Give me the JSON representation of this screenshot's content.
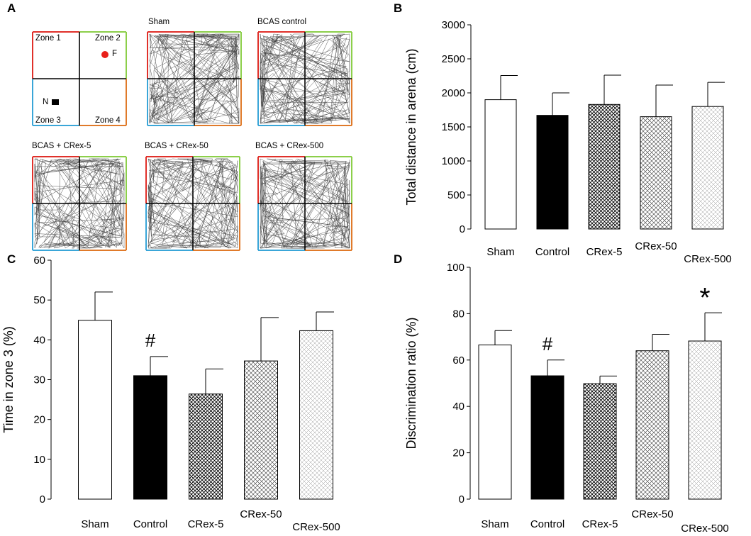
{
  "panels": {
    "a": "A",
    "b": "B",
    "c": "C",
    "d": "D"
  },
  "schematic": {
    "zone1": "Zone 1",
    "zone2": "Zone 2",
    "zone3": "Zone 3",
    "zone4": "Zone 4",
    "novel_marker": "N",
    "familiar_marker": "F"
  },
  "arenas": [
    {
      "title": "Sham"
    },
    {
      "title": "BCAS control"
    },
    {
      "title": "BCAS + CRex-5"
    },
    {
      "title": "BCAS + CRex-50"
    },
    {
      "title": "BCAS + CRex-500"
    }
  ],
  "colors": {
    "zone1_border": "#e0302a",
    "zone2_border": "#8ccf4a",
    "zone3_border": "#3aa6d8",
    "zone4_border": "#e07a2a",
    "familiar_dot": "#e8201a",
    "bar_outline": "#000000",
    "control_fill": "#000000"
  },
  "chart_data": [
    {
      "id": "B",
      "type": "bar",
      "title": "",
      "xlabel": "",
      "ylabel": "Total distance in arena (cm)",
      "ylim": [
        0,
        3000
      ],
      "yticks": [
        0,
        500,
        1000,
        1500,
        2000,
        2500,
        3000
      ],
      "categories": [
        "Sham",
        "Control",
        "CRex-5",
        "CRex-50",
        "CRex-500"
      ],
      "values": [
        1900,
        1670,
        1830,
        1650,
        1800
      ],
      "errors": [
        355,
        330,
        430,
        465,
        355
      ],
      "fills": [
        "white",
        "black",
        "crosshatch-dense",
        "crosshatch-medium",
        "crosshatch-light"
      ],
      "annotations": []
    },
    {
      "id": "C",
      "type": "bar",
      "title": "",
      "xlabel": "",
      "ylabel": "Time in zone 3 (%)",
      "ylim": [
        0,
        60
      ],
      "yticks": [
        0,
        10,
        20,
        30,
        40,
        50,
        60
      ],
      "categories": [
        "Sham",
        "Control",
        "CRex-5",
        "CRex-50",
        "CRex-500"
      ],
      "values": [
        44.9,
        31.0,
        26.4,
        34.7,
        42.3
      ],
      "errors": [
        7.1,
        4.8,
        6.3,
        10.9,
        4.7
      ],
      "fills": [
        "white",
        "black",
        "crosshatch-dense",
        "crosshatch-medium",
        "crosshatch-light"
      ],
      "annotations": [
        {
          "category": "Control",
          "text": "#"
        }
      ]
    },
    {
      "id": "D",
      "type": "bar",
      "title": "",
      "xlabel": "",
      "ylabel": "Discrimination ratio (%)",
      "ylim": [
        0,
        100
      ],
      "yticks": [
        0,
        20,
        40,
        60,
        80,
        100
      ],
      "categories": [
        "Sham",
        "Control",
        "CRex-5",
        "CRex-50",
        "CRex-500"
      ],
      "values": [
        66.5,
        53.2,
        49.8,
        64.0,
        68.2
      ],
      "errors": [
        6.2,
        6.8,
        3.3,
        7.1,
        12.2
      ],
      "fills": [
        "white",
        "black",
        "crosshatch-dense",
        "crosshatch-medium",
        "crosshatch-light"
      ],
      "annotations": [
        {
          "category": "Control",
          "text": "#"
        },
        {
          "category": "CRex-500",
          "text": "*"
        }
      ]
    }
  ]
}
